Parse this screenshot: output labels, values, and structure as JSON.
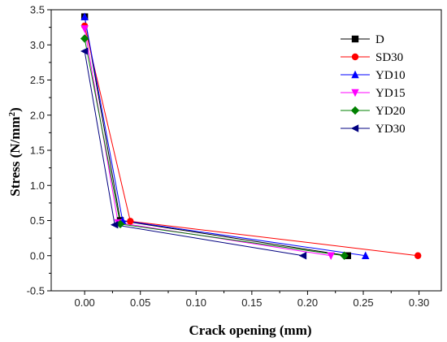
{
  "chart_data": {
    "type": "line",
    "xlabel": "Crack opening (mm)",
    "ylabel": "Stress (N/mm",
    "ylabel_superscript": "2",
    "ylabel_suffix": ")",
    "xlim": [
      -0.03,
      0.32
    ],
    "ylim": [
      -0.5,
      3.5
    ],
    "xticks": [
      0.0,
      0.05,
      0.1,
      0.15,
      0.2,
      0.25,
      0.3
    ],
    "xtick_labels": [
      "0.00",
      "0.05",
      "0.10",
      "0.15",
      "0.20",
      "0.25",
      "0.30"
    ],
    "yticks": [
      -0.5,
      0.0,
      0.5,
      1.0,
      1.5,
      2.0,
      2.5,
      3.0,
      3.5
    ],
    "ytick_labels": [
      "-0.5",
      "0.0",
      "0.5",
      "1.0",
      "1.5",
      "2.0",
      "2.5",
      "3.0",
      "3.5"
    ],
    "legend_position": "top-right",
    "grid": false,
    "series": [
      {
        "name": "D",
        "color": "#000000",
        "marker": "square",
        "points": [
          [
            0.0,
            3.4
          ],
          [
            0.032,
            0.5
          ],
          [
            0.236,
            0.0
          ]
        ]
      },
      {
        "name": "SD30",
        "color": "#ff0000",
        "marker": "circle",
        "points": [
          [
            0.0,
            3.27
          ],
          [
            0.041,
            0.49
          ],
          [
            0.299,
            0.0
          ]
        ]
      },
      {
        "name": "YD10",
        "color": "#0000ff",
        "marker": "triangle-up",
        "points": [
          [
            0.0,
            3.4
          ],
          [
            0.034,
            0.5
          ],
          [
            0.252,
            0.0
          ]
        ]
      },
      {
        "name": "YD15",
        "color": "#ff00ff",
        "marker": "triangle-down",
        "points": [
          [
            0.0,
            3.23
          ],
          [
            0.03,
            0.47
          ],
          [
            0.221,
            0.0
          ]
        ]
      },
      {
        "name": "YD20",
        "color": "#008000",
        "marker": "diamond",
        "points": [
          [
            0.0,
            3.09
          ],
          [
            0.032,
            0.45
          ],
          [
            0.233,
            0.0
          ]
        ]
      },
      {
        "name": "YD30",
        "color": "#000080",
        "marker": "triangle-left",
        "points": [
          [
            0.0,
            2.91
          ],
          [
            0.027,
            0.44
          ],
          [
            0.196,
            0.0
          ]
        ]
      }
    ]
  }
}
